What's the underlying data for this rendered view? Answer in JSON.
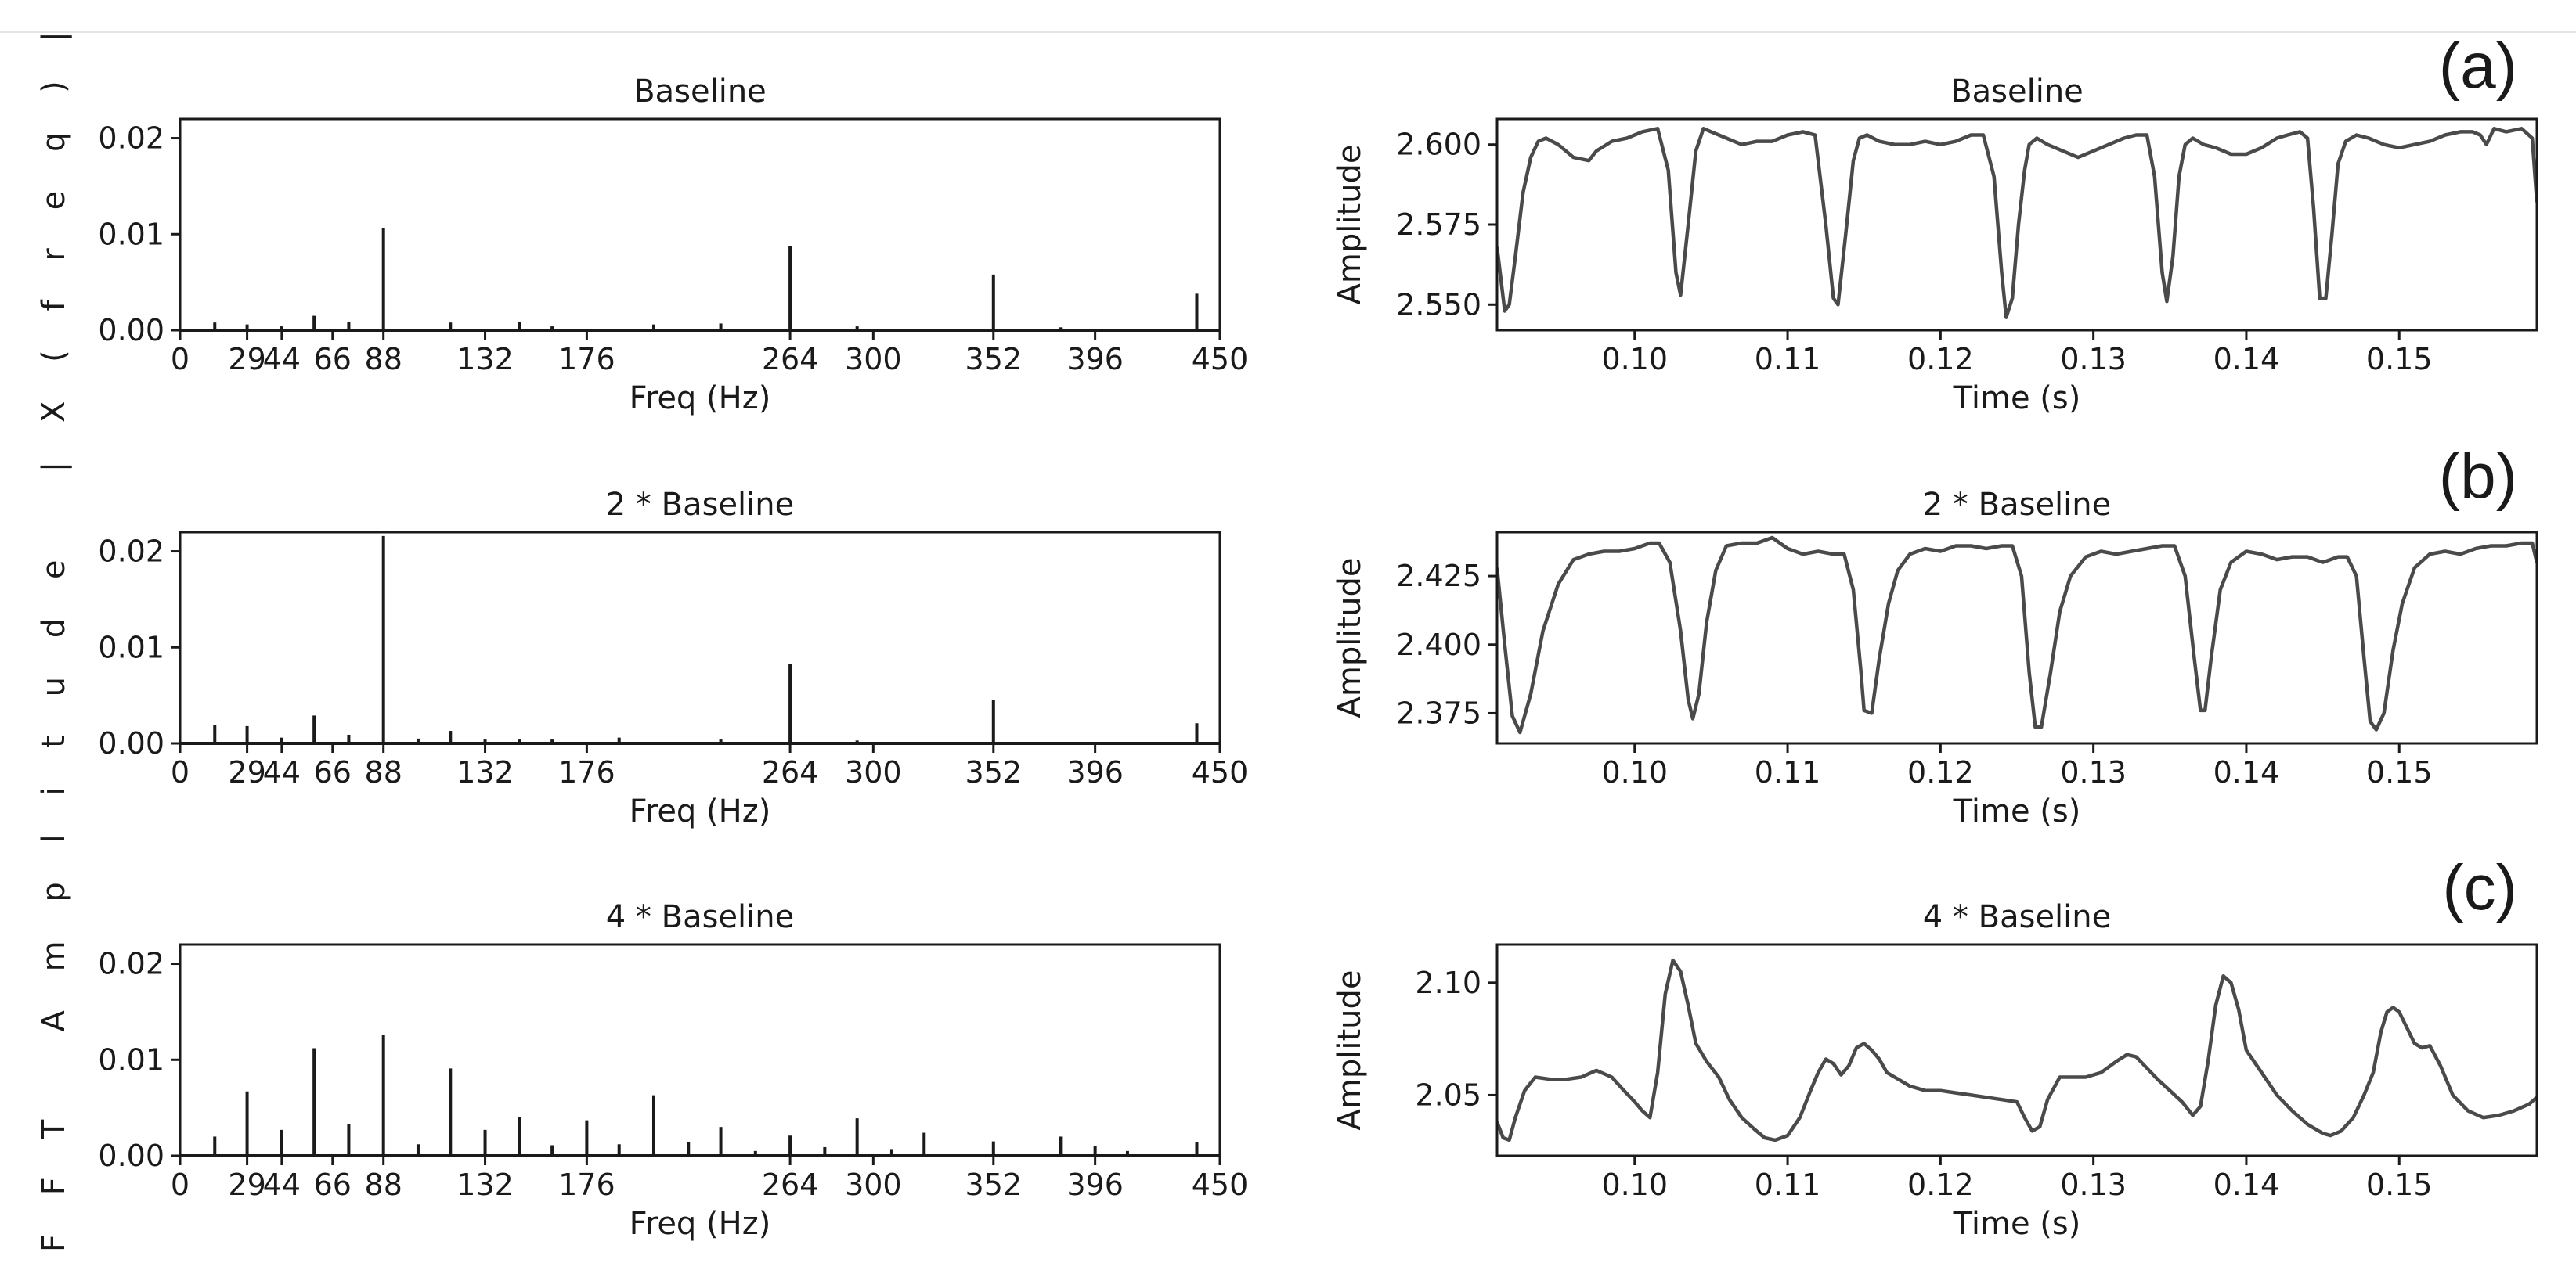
{
  "shared_ylabel": "FFT Amplitude |X(freq)|",
  "chart_data": [
    {
      "id": "fft-a",
      "type": "bar",
      "subtype": "stem",
      "title": "Baseline",
      "xlabel": "Freq (Hz)",
      "ylabel": "",
      "xlim": [
        0,
        450
      ],
      "ylim": [
        0,
        0.022
      ],
      "xticks": [
        0,
        29,
        44,
        66,
        88,
        132,
        176,
        264,
        300,
        352,
        396,
        450
      ],
      "xticklabels": [
        "0",
        "29",
        "44",
        "66",
        "88",
        "132",
        "176",
        "264",
        "300",
        "352",
        "396",
        "450"
      ],
      "yticks": [
        0,
        0.01,
        0.02
      ],
      "yticklabels": [
        "0.00",
        "0.01",
        "0.02"
      ],
      "x": [
        15,
        29,
        44,
        58,
        73,
        88,
        117,
        147,
        161,
        205,
        234,
        264,
        293,
        352,
        381,
        440
      ],
      "values": [
        0.0008,
        0.0006,
        0.0004,
        0.0015,
        0.0009,
        0.0106,
        0.0008,
        0.0009,
        0.0004,
        0.0006,
        0.0007,
        0.0088,
        0.0004,
        0.0058,
        0.0003,
        0.0038
      ]
    },
    {
      "id": "fft-b",
      "type": "bar",
      "subtype": "stem",
      "title": "2 * Baseline",
      "xlabel": "Freq (Hz)",
      "ylabel": "",
      "xlim": [
        0,
        450
      ],
      "ylim": [
        0,
        0.022
      ],
      "xticks": [
        0,
        29,
        44,
        66,
        88,
        132,
        176,
        264,
        300,
        352,
        396,
        450
      ],
      "xticklabels": [
        "0",
        "29",
        "44",
        "66",
        "88",
        "132",
        "176",
        "264",
        "300",
        "352",
        "396",
        "450"
      ],
      "yticks": [
        0,
        0.01,
        0.02
      ],
      "yticklabels": [
        "0.00",
        "0.01",
        "0.02"
      ],
      "x": [
        15,
        29,
        44,
        58,
        73,
        88,
        103,
        117,
        132,
        147,
        161,
        190,
        234,
        264,
        293,
        352,
        440
      ],
      "values": [
        0.0019,
        0.0018,
        0.0006,
        0.0029,
        0.0009,
        0.0216,
        0.0005,
        0.0013,
        0.0004,
        0.0004,
        0.0004,
        0.0006,
        0.0004,
        0.0083,
        0.0003,
        0.0045,
        0.0021
      ]
    },
    {
      "id": "fft-c",
      "type": "bar",
      "subtype": "stem",
      "title": "4 * Baseline",
      "xlabel": "Freq (Hz)",
      "ylabel": "",
      "xlim": [
        0,
        450
      ],
      "ylim": [
        0,
        0.022
      ],
      "xticks": [
        0,
        29,
        44,
        66,
        88,
        132,
        176,
        264,
        300,
        352,
        396,
        450
      ],
      "xticklabels": [
        "0",
        "29",
        "44",
        "66",
        "88",
        "132",
        "176",
        "264",
        "300",
        "352",
        "396",
        "450"
      ],
      "yticks": [
        0,
        0.01,
        0.02
      ],
      "yticklabels": [
        "0.00",
        "0.01",
        "0.02"
      ],
      "x": [
        15,
        29,
        44,
        58,
        73,
        88,
        103,
        117,
        132,
        147,
        161,
        176,
        190,
        205,
        220,
        234,
        249,
        264,
        279,
        293,
        308,
        322,
        352,
        381,
        396,
        410,
        440
      ],
      "values": [
        0.002,
        0.0067,
        0.0027,
        0.0112,
        0.0033,
        0.0126,
        0.0012,
        0.0091,
        0.0027,
        0.004,
        0.0011,
        0.0037,
        0.0012,
        0.0063,
        0.0014,
        0.003,
        0.0005,
        0.0021,
        0.0009,
        0.0039,
        0.0007,
        0.0024,
        0.0015,
        0.002,
        0.001,
        0.0005,
        0.0014
      ]
    },
    {
      "id": "time-a",
      "type": "line",
      "title": "Baseline",
      "xlabel": "Time (s)",
      "ylabel": "Amplitude",
      "xlim": [
        0.091,
        0.159
      ],
      "ylim": [
        2.542,
        2.608
      ],
      "xticks": [
        0.1,
        0.11,
        0.12,
        0.13,
        0.14,
        0.15
      ],
      "xticklabels": [
        "0.10",
        "0.11",
        "0.12",
        "0.13",
        "0.14",
        "0.15"
      ],
      "yticks": [
        2.55,
        2.575,
        2.6
      ],
      "yticklabels": [
        "2.550",
        "2.575",
        "2.600"
      ],
      "x": [
        0.091,
        0.0915,
        0.0918,
        0.0922,
        0.0927,
        0.0932,
        0.0937,
        0.0942,
        0.095,
        0.096,
        0.097,
        0.0975,
        0.0985,
        0.0995,
        0.1005,
        0.1015,
        0.1022,
        0.1027,
        0.103,
        0.1035,
        0.104,
        0.1045,
        0.105,
        0.106,
        0.107,
        0.108,
        0.109,
        0.11,
        0.111,
        0.1118,
        0.1125,
        0.113,
        0.1133,
        0.1138,
        0.1143,
        0.1147,
        0.1152,
        0.116,
        0.117,
        0.118,
        0.119,
        0.12,
        0.121,
        0.122,
        0.1228,
        0.1235,
        0.124,
        0.1243,
        0.1247,
        0.1251,
        0.1255,
        0.1258,
        0.1263,
        0.127,
        0.128,
        0.129,
        0.13,
        0.131,
        0.132,
        0.1328,
        0.1335,
        0.134,
        0.1345,
        0.1348,
        0.1352,
        0.1356,
        0.136,
        0.1365,
        0.1372,
        0.138,
        0.139,
        0.14,
        0.141,
        0.142,
        0.1427,
        0.1435,
        0.144,
        0.1444,
        0.1448,
        0.1452,
        0.1456,
        0.146,
        0.1465,
        0.1472,
        0.148,
        0.149,
        0.15,
        0.151,
        0.152,
        0.153,
        0.154,
        0.1548,
        0.1553,
        0.1557,
        0.1562,
        0.157,
        0.158,
        0.1587,
        0.159
      ],
      "values": [
        2.568,
        2.548,
        2.55,
        2.565,
        2.585,
        2.596,
        2.601,
        2.602,
        2.6,
        2.596,
        2.595,
        2.598,
        2.601,
        2.602,
        2.604,
        2.605,
        2.592,
        2.56,
        2.553,
        2.575,
        2.598,
        2.605,
        2.604,
        2.602,
        2.6,
        2.601,
        2.601,
        2.603,
        2.604,
        2.603,
        2.575,
        2.552,
        2.55,
        2.572,
        2.595,
        2.602,
        2.603,
        2.601,
        2.6,
        2.6,
        2.601,
        2.6,
        2.601,
        2.603,
        2.603,
        2.59,
        2.56,
        2.546,
        2.552,
        2.575,
        2.592,
        2.6,
        2.602,
        2.6,
        2.598,
        2.596,
        2.598,
        2.6,
        2.602,
        2.603,
        2.603,
        2.59,
        2.56,
        2.551,
        2.565,
        2.59,
        2.6,
        2.602,
        2.6,
        2.599,
        2.597,
        2.597,
        2.599,
        2.602,
        2.603,
        2.604,
        2.602,
        2.58,
        2.552,
        2.552,
        2.572,
        2.594,
        2.601,
        2.603,
        2.602,
        2.6,
        2.599,
        2.6,
        2.601,
        2.603,
        2.604,
        2.604,
        2.603,
        2.6,
        2.605,
        2.604,
        2.605,
        2.602,
        2.582
      ]
    },
    {
      "id": "time-b",
      "type": "line",
      "title": "2 * Baseline",
      "xlabel": "Time (s)",
      "ylabel": "Amplitude",
      "xlim": [
        0.091,
        0.159
      ],
      "ylim": [
        2.364,
        2.441
      ],
      "xticks": [
        0.1,
        0.11,
        0.12,
        0.13,
        0.14,
        0.15
      ],
      "xticklabels": [
        "0.10",
        "0.11",
        "0.12",
        "0.13",
        "0.14",
        "0.15"
      ],
      "yticks": [
        2.375,
        2.4,
        2.425
      ],
      "yticklabels": [
        "2.375",
        "2.400",
        "2.425"
      ],
      "x": [
        0.091,
        0.0915,
        0.092,
        0.0925,
        0.0932,
        0.094,
        0.095,
        0.096,
        0.097,
        0.098,
        0.099,
        0.1,
        0.101,
        0.1016,
        0.1023,
        0.103,
        0.1035,
        0.1038,
        0.1042,
        0.1047,
        0.1053,
        0.106,
        0.107,
        0.108,
        0.109,
        0.11,
        0.111,
        0.112,
        0.113,
        0.1137,
        0.1143,
        0.1148,
        0.115,
        0.1155,
        0.116,
        0.1166,
        0.1172,
        0.118,
        0.119,
        0.12,
        0.121,
        0.122,
        0.123,
        0.124,
        0.1247,
        0.1253,
        0.1258,
        0.1262,
        0.1266,
        0.1272,
        0.1278,
        0.1285,
        0.1295,
        0.1305,
        0.1315,
        0.1325,
        0.1335,
        0.1345,
        0.1353,
        0.136,
        0.1366,
        0.137,
        0.1373,
        0.1377,
        0.1383,
        0.139,
        0.14,
        0.141,
        0.142,
        0.143,
        0.144,
        0.145,
        0.146,
        0.1466,
        0.1472,
        0.1477,
        0.1481,
        0.1485,
        0.149,
        0.1496,
        0.1502,
        0.151,
        0.152,
        0.153,
        0.154,
        0.155,
        0.156,
        0.157,
        0.158,
        0.1587,
        0.159
      ],
      "values": [
        2.428,
        2.4,
        2.374,
        2.368,
        2.382,
        2.405,
        2.422,
        2.431,
        2.433,
        2.434,
        2.434,
        2.435,
        2.437,
        2.437,
        2.43,
        2.405,
        2.38,
        2.373,
        2.382,
        2.408,
        2.427,
        2.436,
        2.437,
        2.437,
        2.439,
        2.435,
        2.433,
        2.434,
        2.433,
        2.433,
        2.42,
        2.39,
        2.376,
        2.375,
        2.395,
        2.415,
        2.427,
        2.433,
        2.435,
        2.434,
        2.436,
        2.436,
        2.435,
        2.436,
        2.436,
        2.425,
        2.39,
        2.37,
        2.37,
        2.39,
        2.412,
        2.425,
        2.432,
        2.434,
        2.433,
        2.434,
        2.435,
        2.436,
        2.436,
        2.425,
        2.395,
        2.376,
        2.376,
        2.395,
        2.42,
        2.43,
        2.434,
        2.433,
        2.431,
        2.432,
        2.432,
        2.43,
        2.432,
        2.432,
        2.425,
        2.395,
        2.372,
        2.369,
        2.375,
        2.398,
        2.415,
        2.428,
        2.433,
        2.434,
        2.433,
        2.435,
        2.436,
        2.436,
        2.437,
        2.437,
        2.43
      ]
    },
    {
      "id": "time-c",
      "type": "line",
      "title": "4 * Baseline",
      "xlabel": "Time (s)",
      "ylabel": "Amplitude",
      "xlim": [
        0.091,
        0.159
      ],
      "ylim": [
        2.023,
        2.117
      ],
      "xticks": [
        0.1,
        0.11,
        0.12,
        0.13,
        0.14,
        0.15
      ],
      "xticklabels": [
        "0.10",
        "0.11",
        "0.12",
        "0.13",
        "0.14",
        "0.15"
      ],
      "yticks": [
        2.05,
        2.1
      ],
      "yticklabels": [
        "2.05",
        "2.10"
      ],
      "x": [
        0.091,
        0.0914,
        0.0918,
        0.0922,
        0.0928,
        0.0935,
        0.0945,
        0.0955,
        0.0965,
        0.0975,
        0.0985,
        0.0993,
        0.1,
        0.1005,
        0.101,
        0.1015,
        0.102,
        0.1025,
        0.103,
        0.1035,
        0.104,
        0.1047,
        0.1055,
        0.1062,
        0.107,
        0.1078,
        0.1085,
        0.1092,
        0.11,
        0.1108,
        0.1115,
        0.112,
        0.1125,
        0.113,
        0.1135,
        0.114,
        0.1145,
        0.115,
        0.1155,
        0.116,
        0.1165,
        0.117,
        0.118,
        0.119,
        0.12,
        0.121,
        0.122,
        0.123,
        0.124,
        0.125,
        0.1255,
        0.126,
        0.1265,
        0.127,
        0.1278,
        0.1285,
        0.1295,
        0.1305,
        0.1315,
        0.1322,
        0.1328,
        0.1335,
        0.1342,
        0.135,
        0.1358,
        0.1365,
        0.137,
        0.1375,
        0.138,
        0.1385,
        0.139,
        0.1395,
        0.14,
        0.141,
        0.142,
        0.143,
        0.144,
        0.145,
        0.1455,
        0.1462,
        0.147,
        0.1477,
        0.1483,
        0.1488,
        0.1492,
        0.1496,
        0.15,
        0.1505,
        0.151,
        0.1515,
        0.152,
        0.1527,
        0.1535,
        0.1545,
        0.1555,
        0.1565,
        0.1575,
        0.1585,
        0.159
      ],
      "values": [
        2.038,
        2.031,
        2.03,
        2.04,
        2.052,
        2.058,
        2.057,
        2.057,
        2.058,
        2.061,
        2.058,
        2.052,
        2.047,
        2.043,
        2.04,
        2.06,
        2.095,
        2.11,
        2.105,
        2.09,
        2.073,
        2.065,
        2.058,
        2.048,
        2.04,
        2.035,
        2.031,
        2.03,
        2.032,
        2.04,
        2.052,
        2.06,
        2.066,
        2.064,
        2.059,
        2.063,
        2.071,
        2.073,
        2.07,
        2.066,
        2.06,
        2.058,
        2.054,
        2.052,
        2.052,
        2.051,
        2.05,
        2.049,
        2.048,
        2.047,
        2.04,
        2.034,
        2.036,
        2.048,
        2.058,
        2.058,
        2.058,
        2.06,
        2.065,
        2.068,
        2.067,
        2.062,
        2.057,
        2.052,
        2.047,
        2.041,
        2.045,
        2.065,
        2.09,
        2.103,
        2.1,
        2.088,
        2.07,
        2.06,
        2.05,
        2.043,
        2.037,
        2.033,
        2.032,
        2.034,
        2.04,
        2.05,
        2.06,
        2.078,
        2.087,
        2.089,
        2.087,
        2.08,
        2.073,
        2.071,
        2.072,
        2.063,
        2.05,
        2.043,
        2.04,
        2.041,
        2.043,
        2.046,
        2.049
      ]
    }
  ],
  "panel_labels": [
    "(a)",
    "(b)",
    "(c)"
  ]
}
